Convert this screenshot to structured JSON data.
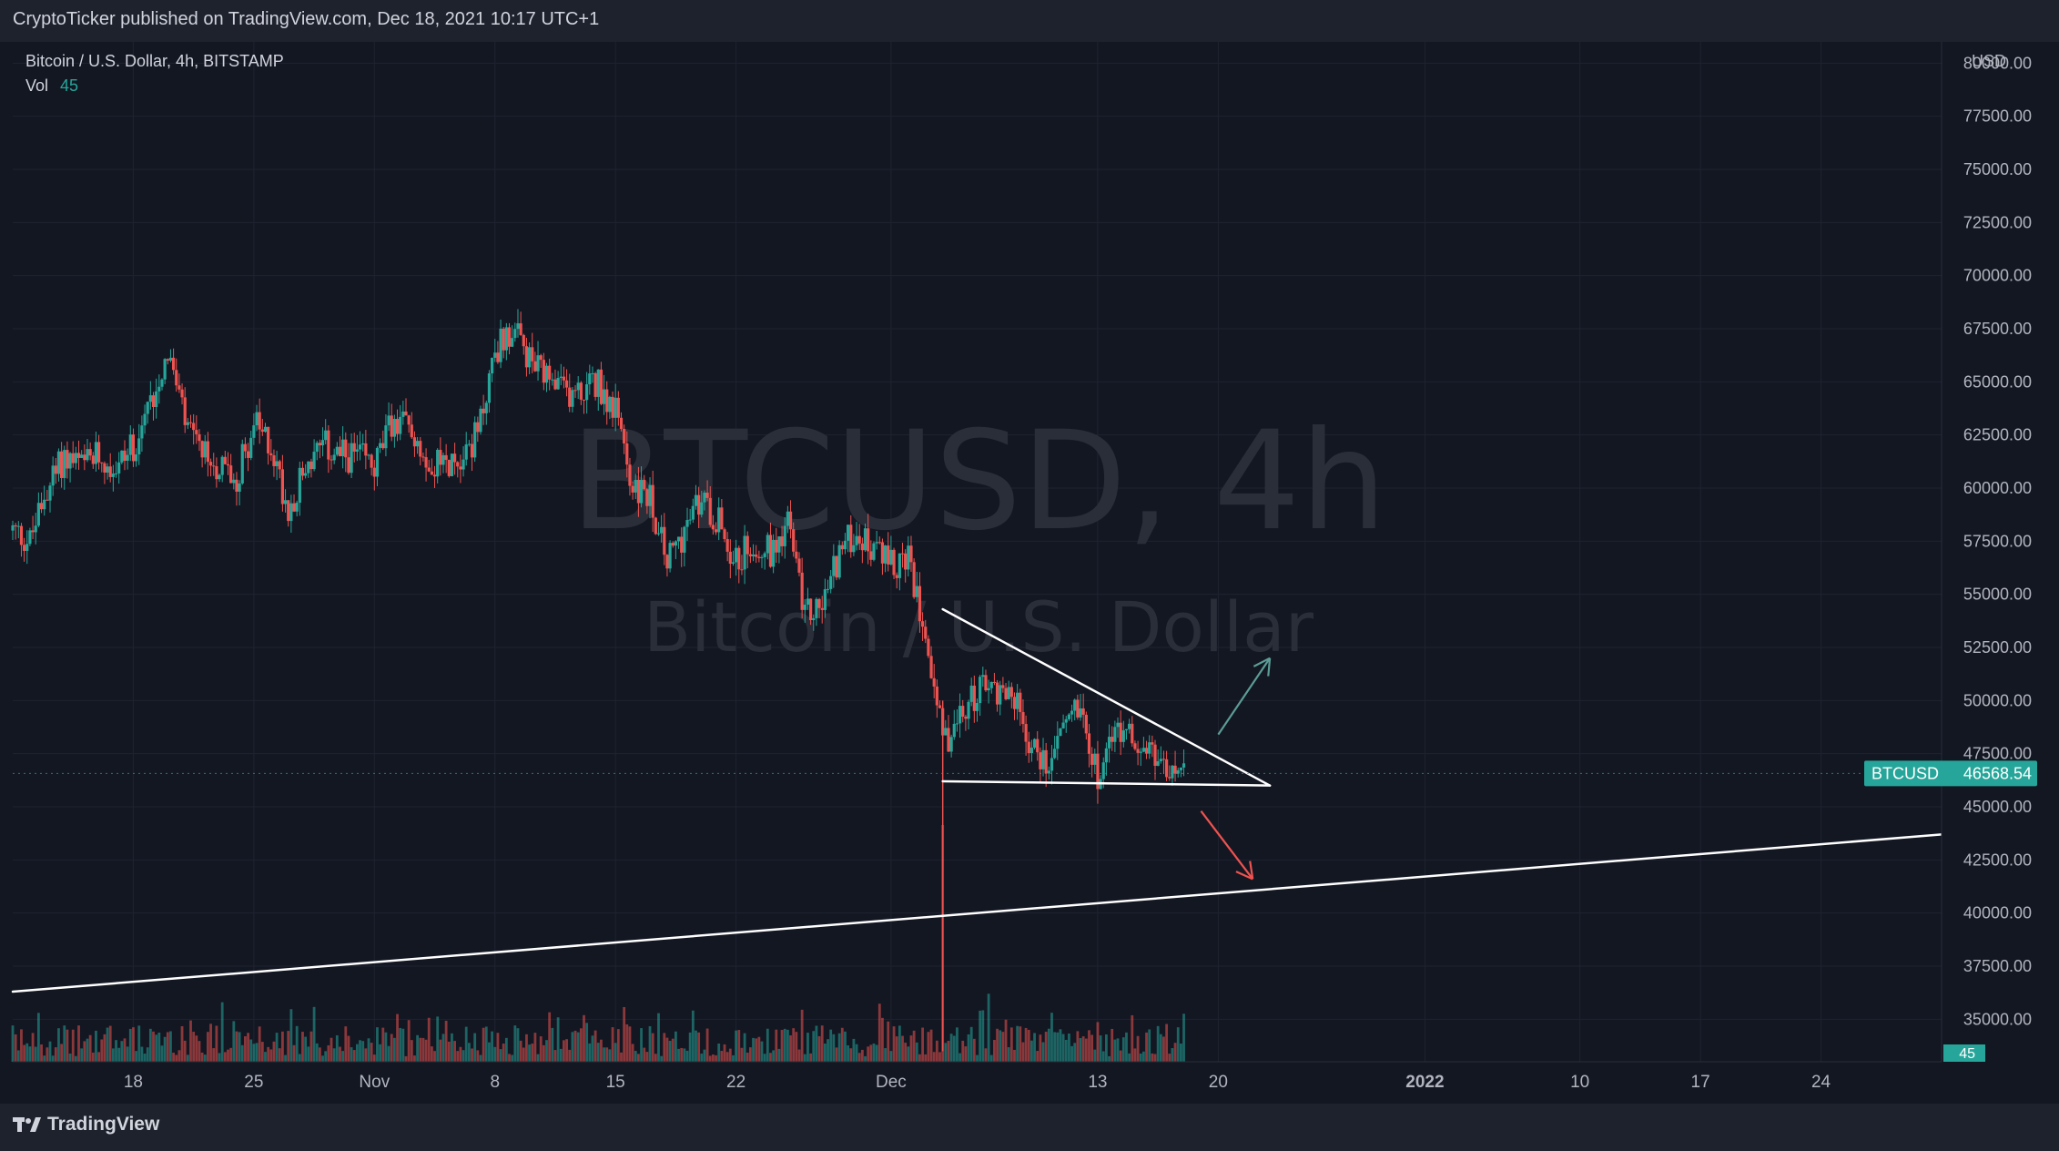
{
  "header": {
    "published_by": "CryptoTicker published on TradingView.com, Dec 18, 2021 10:17 UTC+1"
  },
  "legend": {
    "symbol_line": "Bitcoin / U.S. Dollar, 4h, BITSTAMP",
    "vol_label": "Vol",
    "vol_value": "45"
  },
  "watermark": {
    "ticker": "BTCUSD, 4h",
    "name": "Bitcoin / U.S. Dollar"
  },
  "price_axis": {
    "currency": "USD"
  },
  "current_price": {
    "symbol": "BTCUSD",
    "value": "46568.54"
  },
  "volume_tag": "45",
  "footer": {
    "brand": "TradingView"
  },
  "colors": {
    "background": "#131722",
    "up": "#26a69a",
    "down": "#ef5350",
    "line": "#ffffff",
    "up_arrow": "#5b9c96",
    "down_arrow": "#ef5350"
  },
  "chart_data": {
    "type": "candlestick",
    "interval": "4h",
    "ylim": [
      33000,
      81000
    ],
    "y_ticks": [
      "80000.00",
      "77500.00",
      "75000.00",
      "72500.00",
      "70000.00",
      "67500.00",
      "65000.00",
      "62500.00",
      "60000.00",
      "57500.00",
      "55000.00",
      "52500.00",
      "50000.00",
      "47500.00",
      "45000.00",
      "42500.00",
      "40000.00",
      "37500.00",
      "35000.00",
      "32500.00",
      "30000.00"
    ],
    "x_ticks": [
      {
        "label": "18",
        "date": "2021-10-18"
      },
      {
        "label": "25",
        "date": "2021-10-25"
      },
      {
        "label": "Nov",
        "date": "2021-11-01"
      },
      {
        "label": "8",
        "date": "2021-11-08"
      },
      {
        "label": "15",
        "date": "2021-11-15"
      },
      {
        "label": "22",
        "date": "2021-11-22"
      },
      {
        "label": "Dec",
        "date": "2021-12-01"
      },
      {
        "label": "13",
        "date": "2021-12-13"
      },
      {
        "label": "20",
        "date": "2021-12-20"
      },
      {
        "label": "2022",
        "date": "2022-01-01"
      },
      {
        "label": "10",
        "date": "2022-01-10"
      },
      {
        "label": "17",
        "date": "2022-01-17"
      },
      {
        "label": "24",
        "date": "2022-01-24"
      }
    ],
    "x_range": [
      "2021-10-11",
      "2022-01-31"
    ],
    "price_path": [
      [
        "2021-10-11",
        58000
      ],
      [
        "2021-10-12",
        57500
      ],
      [
        "2021-10-13",
        60000
      ],
      [
        "2021-10-14",
        61500
      ],
      [
        "2021-10-15",
        61000
      ],
      [
        "2021-10-16",
        61500
      ],
      [
        "2021-10-17",
        61000
      ],
      [
        "2021-10-18",
        62000
      ],
      [
        "2021-10-19",
        64000
      ],
      [
        "2021-10-20",
        66500
      ],
      [
        "2021-10-21",
        63000
      ],
      [
        "2021-10-22",
        61500
      ],
      [
        "2021-10-23",
        61000
      ],
      [
        "2021-10-24",
        60500
      ],
      [
        "2021-10-25",
        63000
      ],
      [
        "2021-10-26",
        62000
      ],
      [
        "2021-10-27",
        59000
      ],
      [
        "2021-10-28",
        61000
      ],
      [
        "2021-10-29",
        62000
      ],
      [
        "2021-10-30",
        61500
      ],
      [
        "2021-10-31",
        61500
      ],
      [
        "2021-11-01",
        61000
      ],
      [
        "2021-11-02",
        63000
      ],
      [
        "2021-11-03",
        63000
      ],
      [
        "2021-11-04",
        61500
      ],
      [
        "2021-11-05",
        61000
      ],
      [
        "2021-11-06",
        61500
      ],
      [
        "2021-11-07",
        62500
      ],
      [
        "2021-11-08",
        66500
      ],
      [
        "2021-11-09",
        67500
      ],
      [
        "2021-11-10",
        66000
      ],
      [
        "2021-11-11",
        65000
      ],
      [
        "2021-11-12",
        64500
      ],
      [
        "2021-11-13",
        64500
      ],
      [
        "2021-11-14",
        65000
      ],
      [
        "2021-11-15",
        63500
      ],
      [
        "2021-11-16",
        60000
      ],
      [
        "2021-11-17",
        59500
      ],
      [
        "2021-11-18",
        56500
      ],
      [
        "2021-11-19",
        58000
      ],
      [
        "2021-11-20",
        59500
      ],
      [
        "2021-11-21",
        58500
      ],
      [
        "2021-11-22",
        56500
      ],
      [
        "2021-11-23",
        57500
      ],
      [
        "2021-11-24",
        57000
      ],
      [
        "2021-11-25",
        58500
      ],
      [
        "2021-11-26",
        54000
      ],
      [
        "2021-11-27",
        54500
      ],
      [
        "2021-11-28",
        57000
      ],
      [
        "2021-11-29",
        58000
      ],
      [
        "2021-11-30",
        57000
      ],
      [
        "2021-12-01",
        56500
      ],
      [
        "2021-12-02",
        56500
      ],
      [
        "2021-12-03",
        53500
      ],
      [
        "2021-12-04",
        48000
      ],
      [
        "2021-12-05",
        49000
      ],
      [
        "2021-12-06",
        50500
      ],
      [
        "2021-12-07",
        50500
      ],
      [
        "2021-12-08",
        50500
      ],
      [
        "2021-12-09",
        48000
      ],
      [
        "2021-12-10",
        47000
      ],
      [
        "2021-12-11",
        49000
      ],
      [
        "2021-12-12",
        50000
      ],
      [
        "2021-12-13",
        46500
      ],
      [
        "2021-12-14",
        48500
      ],
      [
        "2021-12-15",
        48500
      ],
      [
        "2021-12-16",
        47500
      ],
      [
        "2021-12-17",
        46500
      ],
      [
        "2021-12-18",
        46568.54
      ]
    ],
    "drawings": {
      "triangle_upper": [
        [
          "2021-12-04",
          54300
        ],
        [
          "2021-12-23",
          46000
        ]
      ],
      "triangle_lower": [
        [
          "2021-12-04",
          46200
        ],
        [
          "2021-12-23",
          46000
        ]
      ],
      "support_line": [
        [
          "2021-10-11",
          36300
        ],
        [
          "2022-01-31",
          43700
        ]
      ],
      "arrow_up": [
        [
          "2021-12-20",
          48400
        ],
        [
          "2021-12-23",
          52000
        ]
      ],
      "arrow_down": [
        [
          "2021-12-19",
          44800
        ],
        [
          "2021-12-22",
          41600
        ]
      ]
    },
    "volume_spike_date": "2021-12-04"
  }
}
